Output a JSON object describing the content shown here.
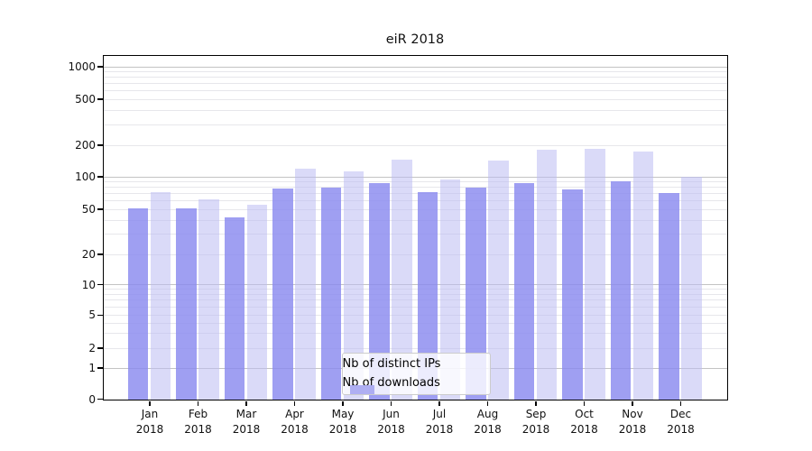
{
  "title": "eiR 2018",
  "y_axis": {
    "ticks": [
      {
        "label": "1000",
        "value": 1000
      },
      {
        "label": "500",
        "value": 500
      },
      {
        "label": "200",
        "value": 200
      },
      {
        "label": "100",
        "value": 100
      },
      {
        "label": "50",
        "value": 50
      },
      {
        "label": "20",
        "value": 20
      },
      {
        "label": "10",
        "value": 10
      },
      {
        "label": "5",
        "value": 5
      },
      {
        "label": "2",
        "value": 2
      },
      {
        "label": "1",
        "value": 1
      },
      {
        "label": "0",
        "value": 0
      }
    ]
  },
  "x_axis": {
    "year": "2018",
    "months": [
      "Jan",
      "Feb",
      "Mar",
      "Apr",
      "May",
      "Jun",
      "Jul",
      "Aug",
      "Sep",
      "Oct",
      "Nov",
      "Dec"
    ]
  },
  "legend": {
    "items": [
      {
        "label": "Nb of distinct IPs",
        "series": "ips"
      },
      {
        "label": "Nb of downloads",
        "series": "dl"
      }
    ]
  },
  "colors": {
    "ips_bar": "#8a8aef",
    "downloads_bar": "#bcbcf2",
    "grid_major": "#c3c3c3",
    "grid_minor": "#e7e7eb"
  },
  "chart_data": {
    "type": "bar",
    "title": "eiR 2018",
    "categories": [
      "Jan 2018",
      "Feb 2018",
      "Mar 2018",
      "Apr 2018",
      "May 2018",
      "Jun 2018",
      "Jul 2018",
      "Aug 2018",
      "Sep 2018",
      "Oct 2018",
      "Nov 2018",
      "Dec 2018"
    ],
    "series": [
      {
        "name": "Nb of distinct IPs",
        "values": [
          52,
          52,
          43,
          78,
          80,
          88,
          73,
          80,
          88,
          77,
          92,
          71
        ]
      },
      {
        "name": "Nb of downloads",
        "values": [
          73,
          63,
          56,
          121,
          114,
          148,
          95,
          145,
          183,
          186,
          176,
          101
        ]
      }
    ],
    "xlabel": "",
    "ylabel": "",
    "yscale": "log-like with 0 baseline",
    "yticks": [
      0,
      1,
      2,
      5,
      10,
      20,
      50,
      100,
      200,
      500,
      1000
    ],
    "ylim": [
      0,
      1250
    ],
    "grid": "horizontal, minor log lines, darker at powers of 10",
    "legend_position": "lower center"
  }
}
